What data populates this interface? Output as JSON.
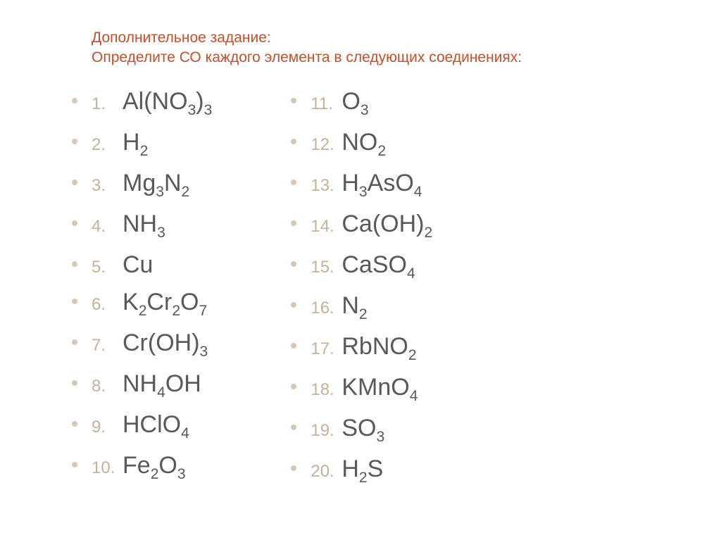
{
  "header": {
    "line1": "Дополнительное задание:",
    "line2": "Определите СО каждого элемента в следующих соединениях:"
  },
  "accent_color": "#c45029",
  "number_color": "#c4b29a",
  "formula_color": "#595959",
  "bullet_color": "#d9c7b5",
  "left": [
    {
      "n": "1.",
      "html": "Al(NO<sub>3</sub>)<sub>3</sub>"
    },
    {
      "n": "2.",
      "html": "H<sub>2</sub>"
    },
    {
      "n": "3.",
      "html": "Mg<sub>3</sub>N<sub>2</sub>"
    },
    {
      "n": "4.",
      "html": "NH<sub>3</sub>"
    },
    {
      "n": "5.",
      "html": "Cu"
    },
    {
      "n": "6.",
      "html": "K<sub>2</sub>Cr<sub>2</sub>O<sub>7</sub>"
    },
    {
      "n": "7.",
      "html": "Cr(OH)<sub>3</sub>"
    },
    {
      "n": "8.",
      "html": "NH<sub>4</sub>OH"
    },
    {
      "n": "9.",
      "html": "HClO<sub>4</sub>"
    },
    {
      "n": "10.",
      "html": "Fe<sub>2</sub>O<sub>3</sub>"
    }
  ],
  "right": [
    {
      "n": "11.",
      "html": "O<sub>3</sub>"
    },
    {
      "n": "12.",
      "html": "NO<sub>2</sub>"
    },
    {
      "n": "13.",
      "html": "H<sub>3</sub>AsO<sub>4</sub>"
    },
    {
      "n": "14.",
      "html": "Ca(OH)<sub>2</sub>"
    },
    {
      "n": "15.",
      "html": "CaSO<sub>4</sub>"
    },
    {
      "n": "16.",
      "html": "N<sub>2</sub>"
    },
    {
      "n": "17.",
      "html": "RbNO<sub>2</sub>"
    },
    {
      "n": "18.",
      "html": "KMnO<sub>4</sub>"
    },
    {
      "n": "19.",
      "html": "SO<sub>3</sub>"
    },
    {
      "n": "20.",
      "html": "H<sub>2</sub>S"
    }
  ]
}
